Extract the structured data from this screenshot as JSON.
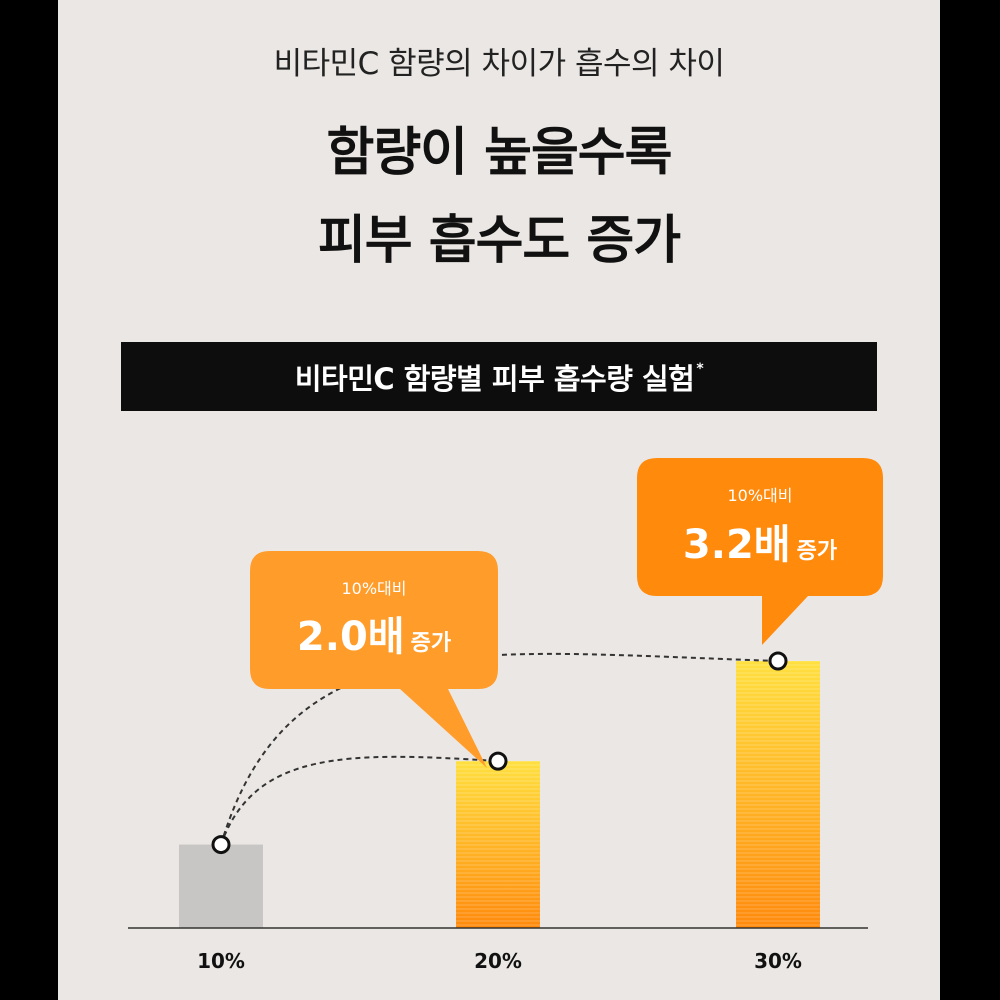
{
  "header": {
    "subtitle": "비타민C 함량의 차이가 흡수의 차이",
    "headline_line1": "함량이 높을수록",
    "headline_line2": "피부 흡수도 증가"
  },
  "banner": {
    "title": "비타민C 함량별 피부 흡수량 실험",
    "footnote_mark": "*"
  },
  "colors": {
    "background": "#ebe7e4",
    "bar_gray": "#c8c6c4",
    "bar_orange_light": "#ffd43a",
    "bar_orange_dark": "#ff8a0c",
    "bubble_left": "#ff9c2a",
    "bubble_right": "#ff8a0c"
  },
  "chart_data": {
    "type": "bar",
    "categories": [
      "10%",
      "20%",
      "30%"
    ],
    "values": [
      1.0,
      2.0,
      3.2
    ],
    "title": "비타민C 함량별 피부 흡수량 실험",
    "xlabel": "",
    "ylabel": "",
    "ylim": [
      0,
      4.2
    ],
    "grid": false,
    "annotations": [
      {
        "category": "20%",
        "small": "10%대비",
        "big": "2.0배",
        "suffix": "증가"
      },
      {
        "category": "30%",
        "small": "10%대비",
        "big": "3.2배",
        "suffix": "증가"
      }
    ]
  }
}
